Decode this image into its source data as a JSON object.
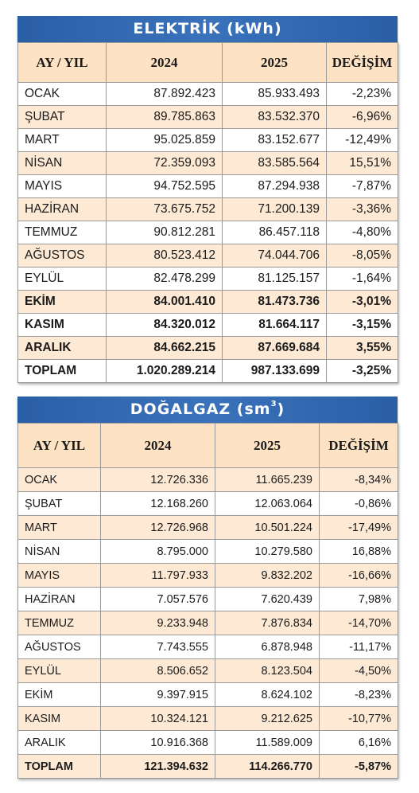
{
  "electricity": {
    "title": "ELEKTRİK (kWh)",
    "headers": [
      "AY / YIL",
      "2024",
      "2025",
      "DEĞİŞİM"
    ],
    "rows": [
      [
        "OCAK",
        "87.892.423",
        "85.933.493",
        "-2,23%"
      ],
      [
        "ŞUBAT",
        "89.785.863",
        "83.532.370",
        "-6,96%"
      ],
      [
        "MART",
        "95.025.859",
        "83.152.677",
        "-12,49%"
      ],
      [
        "NİSAN",
        "72.359.093",
        "83.585.564",
        "15,51%"
      ],
      [
        "MAYIS",
        "94.752.595",
        "87.294.938",
        "-7,87%"
      ],
      [
        "HAZİRAN",
        "73.675.752",
        "71.200.139",
        "-3,36%"
      ],
      [
        "TEMMUZ",
        "90.812.281",
        "86.457.118",
        "-4,80%"
      ],
      [
        "AĞUSTOS",
        "80.523.412",
        "74.044.706",
        "-8,05%"
      ],
      [
        "EYLÜL",
        "82.478.299",
        "81.125.157",
        "-1,64%"
      ],
      [
        "EKİM",
        "84.001.410",
        "81.473.736",
        "-3,01%"
      ],
      [
        "KASIM",
        "84.320.012",
        "81.664.117",
        "-3,15%"
      ],
      [
        "ARALIK",
        "84.662.215",
        "87.669.684",
        "3,55%"
      ],
      [
        "TOPLAM",
        "1.020.289.214",
        "987.133.699",
        "-3,25%"
      ]
    ]
  },
  "gas": {
    "title": "DOĞALGAZ (sm",
    "title_sup": "3",
    "title_end": ")",
    "headers": [
      "AY / YIL",
      "2024",
      "2025",
      "DEĞİŞİM"
    ],
    "rows": [
      [
        "OCAK",
        "12.726.336",
        "11.665.239",
        "-8,34%"
      ],
      [
        "ŞUBAT",
        "12.168.260",
        "12.063.064",
        "-0,86%"
      ],
      [
        "MART",
        "12.726.968",
        "10.501.224",
        "-17,49%"
      ],
      [
        "NİSAN",
        "8.795.000",
        "10.279.580",
        "16,88%"
      ],
      [
        "MAYIS",
        "11.797.933",
        "9.832.202",
        "-16,66%"
      ],
      [
        "HAZİRAN",
        "7.057.576",
        "7.620.439",
        "7,98%"
      ],
      [
        "TEMMUZ",
        "9.233.948",
        "7.876.834",
        "-14,70%"
      ],
      [
        "AĞUSTOS",
        "7.743.555",
        "6.878.948",
        "-11,17%"
      ],
      [
        "EYLÜL",
        "8.506.652",
        "8.123.504",
        "-4,50%"
      ],
      [
        "EKİM",
        "9.397.915",
        "8.624.102",
        "-8,23%"
      ],
      [
        "KASIM",
        "10.324.121",
        "9.212.625",
        "-10,77%"
      ],
      [
        "ARALIK",
        "10.916.368",
        "11.589.009",
        "6,16%"
      ],
      [
        "TOPLAM",
        "121.394.632",
        "114.266.770",
        "-5,87%"
      ]
    ]
  },
  "colors": {
    "title_bar": "#2a5fa6",
    "header_fill": "#fde3c3",
    "alt_row_fill": "#fde9d4"
  }
}
